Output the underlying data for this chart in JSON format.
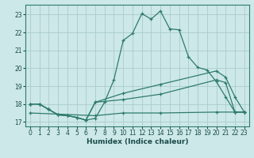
{
  "xlabel": "Humidex (Indice chaleur)",
  "bg_color": "#cde8e8",
  "grid_color": "#aacccc",
  "line_color": "#2e7b6e",
  "xlim": [
    -0.5,
    23.5
  ],
  "ylim": [
    16.75,
    23.55
  ],
  "yticks": [
    17,
    18,
    19,
    20,
    21,
    22,
    23
  ],
  "xticks": [
    0,
    1,
    2,
    3,
    4,
    5,
    6,
    7,
    8,
    9,
    10,
    11,
    12,
    13,
    14,
    15,
    16,
    17,
    18,
    19,
    20,
    21,
    22,
    23
  ],
  "line1_x": [
    0,
    1,
    2,
    3,
    4,
    5,
    6,
    7,
    8,
    9,
    10,
    11,
    12,
    13,
    14,
    15,
    16,
    17,
    18,
    19,
    20,
    21,
    22,
    23
  ],
  "line1_y": [
    18.0,
    18.0,
    17.7,
    17.4,
    17.35,
    17.25,
    17.1,
    17.2,
    18.1,
    19.35,
    21.55,
    21.95,
    23.05,
    22.75,
    23.2,
    22.2,
    22.15,
    20.65,
    20.05,
    19.9,
    19.25,
    18.4,
    17.55,
    17.55
  ],
  "line2_x": [
    0,
    1,
    2,
    3,
    4,
    5,
    6,
    7,
    10,
    14,
    20,
    21,
    22,
    23
  ],
  "line2_y": [
    18.0,
    18.0,
    17.7,
    17.4,
    17.35,
    17.25,
    17.1,
    18.1,
    18.25,
    18.55,
    19.35,
    19.2,
    17.55,
    17.55
  ],
  "line3_x": [
    0,
    1,
    2,
    3,
    4,
    5,
    6,
    7,
    10,
    14,
    20,
    21,
    22,
    23
  ],
  "line3_y": [
    18.0,
    18.0,
    17.7,
    17.4,
    17.35,
    17.25,
    17.1,
    18.1,
    18.6,
    19.1,
    19.85,
    19.5,
    18.4,
    17.55
  ],
  "line4_x": [
    0,
    7,
    10,
    14,
    20,
    22,
    23
  ],
  "line4_y": [
    17.5,
    17.35,
    17.5,
    17.5,
    17.55,
    17.55,
    17.55
  ]
}
